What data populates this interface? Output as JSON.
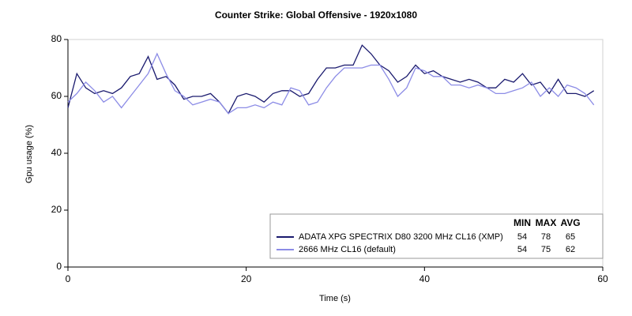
{
  "chart_data": {
    "type": "line",
    "title": "Counter Strike: Global Offensive - 1920x1080",
    "xlabel": "Time (s)",
    "ylabel": "Gpu usage (%)",
    "x": [
      0,
      1,
      2,
      3,
      4,
      5,
      6,
      7,
      8,
      9,
      10,
      11,
      12,
      13,
      14,
      15,
      16,
      17,
      18,
      19,
      20,
      21,
      22,
      23,
      24,
      25,
      26,
      27,
      28,
      29,
      30,
      31,
      32,
      33,
      34,
      35,
      36,
      37,
      38,
      39,
      40,
      41,
      42,
      43,
      44,
      45,
      46,
      47,
      48,
      49,
      50,
      51,
      52,
      53,
      54,
      55,
      56,
      57,
      58,
      59
    ],
    "series": [
      {
        "name": "ADATA XPG SPECTRIX D80 3200 MHz CL16 (XMP)",
        "color": "#1a1a6e",
        "stats": [
          54,
          78,
          65
        ],
        "values": [
          56,
          68,
          63,
          61,
          62,
          61,
          63,
          67,
          68,
          74,
          66,
          67,
          64,
          59,
          60,
          60,
          61,
          58,
          54,
          60,
          61,
          60,
          58,
          61,
          62,
          62,
          60,
          61,
          66,
          70,
          70,
          71,
          71,
          78,
          75,
          71,
          69,
          65,
          67,
          71,
          68,
          69,
          67,
          66,
          65,
          66,
          65,
          63,
          63,
          66,
          65,
          68,
          64,
          65,
          61,
          66,
          61,
          61,
          60,
          62
        ]
      },
      {
        "name": "2666 MHz CL16 (default)",
        "color": "#8c8ce6",
        "stats": [
          54,
          75,
          62
        ],
        "values": [
          58,
          61,
          65,
          62,
          58,
          60,
          56,
          60,
          64,
          68,
          75,
          68,
          62,
          60,
          57,
          58,
          59,
          58,
          54,
          56,
          56,
          57,
          56,
          58,
          57,
          63,
          62,
          57,
          58,
          63,
          67,
          70,
          70,
          70,
          71,
          71,
          66,
          60,
          63,
          70,
          69,
          67,
          67,
          64,
          64,
          63,
          64,
          63,
          61,
          61,
          62,
          63,
          65,
          60,
          63,
          60,
          64,
          63,
          61,
          57
        ]
      }
    ],
    "stats_columns": [
      "MIN",
      "MAX",
      "AVG"
    ],
    "xlim": [
      0,
      60
    ],
    "xticks": [
      0,
      20,
      40,
      60
    ],
    "ylim": [
      0,
      80
    ],
    "yticks": [
      0,
      20,
      40,
      60,
      80
    ],
    "grid": false,
    "legend": "lower right"
  }
}
